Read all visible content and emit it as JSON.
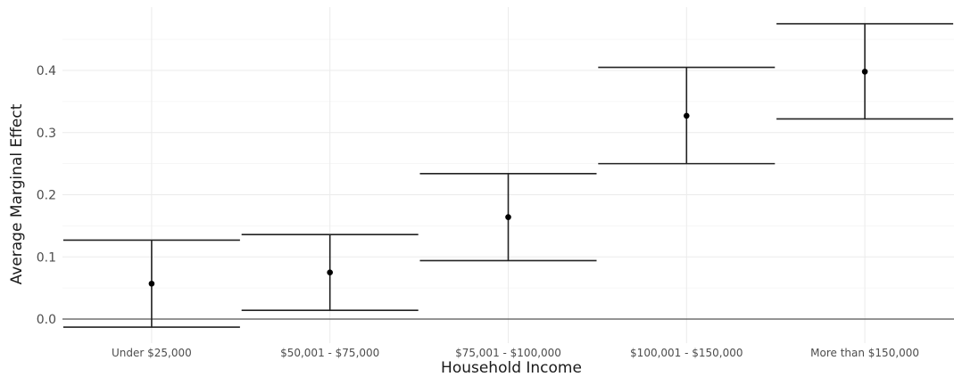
{
  "chart_data": {
    "type": "errorbar",
    "title": "",
    "xlabel": "Household Income",
    "ylabel": "Average Marginal Effect",
    "categories": [
      "Under $25,000",
      "$50,001 - $75,000",
      "$75,001 - $100,000",
      "$100,001 - $150,000",
      "More than $150,000"
    ],
    "estimates": [
      0.057,
      0.075,
      0.164,
      0.327,
      0.398
    ],
    "lower": [
      -0.013,
      0.014,
      0.094,
      0.25,
      0.322
    ],
    "upper": [
      0.127,
      0.136,
      0.234,
      0.405,
      0.475
    ],
    "ylim": [
      -0.025,
      0.49
    ],
    "yticks": [
      0.0,
      0.1,
      0.2,
      0.3,
      0.4
    ],
    "ytick_labels": [
      "0.0",
      "0.1",
      "0.2",
      "0.3",
      "0.4"
    ],
    "grid": true,
    "zero_line": true
  }
}
